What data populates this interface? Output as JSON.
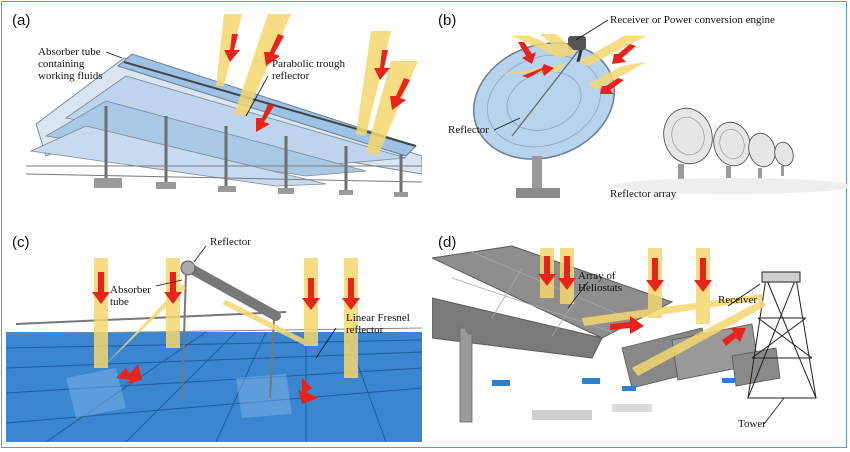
{
  "panels": {
    "a": {
      "tag": "(a)",
      "labels": {
        "absorber_line1": "Absorber tube",
        "absorber_line2": "containing",
        "absorber_line3": "working fluids",
        "reflector_line1": "Parabolic trough",
        "reflector_line2": "reflector"
      }
    },
    "b": {
      "tag": "(b)",
      "labels": {
        "receiver": "Receiver or Power conversion engine",
        "reflector": "Reflector",
        "array": "Reflector array"
      }
    },
    "c": {
      "tag": "(c)",
      "labels": {
        "reflector": "Reflector",
        "absorber_line1": "Absorber",
        "absorber_line2": "tube",
        "fresnel_line1": "Linear Fresnel",
        "fresnel_line2": "reflector"
      }
    },
    "d": {
      "tag": "(d)",
      "labels": {
        "heliostats_line1": "Array of",
        "heliostats_line2": "Heliostats",
        "receiver": "Receiver",
        "tower": "Tower"
      }
    }
  },
  "colors": {
    "sun_ray": "#f5d76e",
    "ray_arrow": "#e8231c",
    "mirror_blue": "#9cc2e6",
    "panel_blue": "#3a86d0",
    "steel_gray": "#8c8c8c",
    "frame_border": "#5b9bd5"
  },
  "icons": [
    "sun-ray-icon",
    "ray-arrow-icon",
    "parabolic-trough-icon",
    "dish-reflector-icon",
    "fresnel-reflector-icon",
    "heliostat-icon",
    "tower-icon"
  ]
}
